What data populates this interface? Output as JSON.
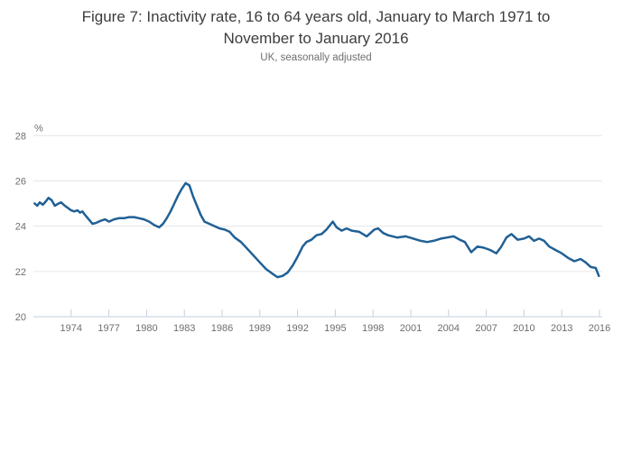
{
  "header": {
    "title": "Figure 7: Inactivity rate, 16 to 64 years old, January to March 1971 to November to January 2016",
    "subtitle": "UK, seasonally adjusted"
  },
  "colors": {
    "line": "#206095",
    "grid": "#e6e6e6",
    "axis": "#c3d0de",
    "tick_text": "#6e6e6e",
    "title_text": "#3d3d3d",
    "subtitle_text": "#6f6f6f"
  },
  "chart_data": {
    "type": "line",
    "title": "Figure 7: Inactivity rate, 16 to 64 years old, January to March 1971 to November to January 2016",
    "subtitle": "UK, seasonally adjusted",
    "xlabel": "",
    "ylabel": "%",
    "xlim": [
      1971,
      2016
    ],
    "ylim": [
      20,
      28
    ],
    "y_ticks": [
      20,
      22,
      24,
      26,
      28
    ],
    "x_ticks": [
      1974,
      1977,
      1980,
      1983,
      1986,
      1989,
      1992,
      1995,
      1998,
      2001,
      2004,
      2007,
      2010,
      2013,
      2016
    ],
    "grid": "horizontal-only",
    "legend": "none",
    "series": [
      {
        "name": "Inactivity rate, 16 to 64 years old",
        "color": "#206095",
        "points": [
          [
            1971.1,
            25.0
          ],
          [
            1971.3,
            24.9
          ],
          [
            1971.5,
            25.05
          ],
          [
            1971.75,
            24.95
          ],
          [
            1972.0,
            25.1
          ],
          [
            1972.2,
            25.25
          ],
          [
            1972.45,
            25.15
          ],
          [
            1972.7,
            24.9
          ],
          [
            1973.0,
            25.0
          ],
          [
            1973.2,
            25.05
          ],
          [
            1973.5,
            24.9
          ],
          [
            1973.75,
            24.8
          ],
          [
            1974.0,
            24.7
          ],
          [
            1974.25,
            24.65
          ],
          [
            1974.5,
            24.7
          ],
          [
            1974.7,
            24.6
          ],
          [
            1974.9,
            24.65
          ],
          [
            1975.1,
            24.5
          ],
          [
            1975.4,
            24.3
          ],
          [
            1975.7,
            24.1
          ],
          [
            1976.0,
            24.15
          ],
          [
            1976.4,
            24.25
          ],
          [
            1976.7,
            24.3
          ],
          [
            1977.0,
            24.2
          ],
          [
            1977.4,
            24.3
          ],
          [
            1977.8,
            24.35
          ],
          [
            1978.2,
            24.35
          ],
          [
            1978.6,
            24.4
          ],
          [
            1979.0,
            24.4
          ],
          [
            1979.4,
            24.35
          ],
          [
            1979.8,
            24.3
          ],
          [
            1980.2,
            24.2
          ],
          [
            1980.6,
            24.05
          ],
          [
            1981.0,
            23.95
          ],
          [
            1981.3,
            24.1
          ],
          [
            1981.6,
            24.35
          ],
          [
            1981.9,
            24.65
          ],
          [
            1982.2,
            25.0
          ],
          [
            1982.5,
            25.35
          ],
          [
            1982.8,
            25.65
          ],
          [
            1983.1,
            25.9
          ],
          [
            1983.4,
            25.8
          ],
          [
            1983.7,
            25.3
          ],
          [
            1984.0,
            24.9
          ],
          [
            1984.3,
            24.5
          ],
          [
            1984.6,
            24.2
          ],
          [
            1985.0,
            24.1
          ],
          [
            1985.4,
            24.0
          ],
          [
            1985.8,
            23.9
          ],
          [
            1986.2,
            23.85
          ],
          [
            1986.6,
            23.75
          ],
          [
            1987.0,
            23.5
          ],
          [
            1987.5,
            23.3
          ],
          [
            1988.0,
            23.0
          ],
          [
            1988.5,
            22.7
          ],
          [
            1989.0,
            22.4
          ],
          [
            1989.5,
            22.1
          ],
          [
            1990.0,
            21.9
          ],
          [
            1990.4,
            21.75
          ],
          [
            1990.8,
            21.8
          ],
          [
            1991.2,
            21.95
          ],
          [
            1991.6,
            22.25
          ],
          [
            1992.0,
            22.65
          ],
          [
            1992.4,
            23.1
          ],
          [
            1992.7,
            23.3
          ],
          [
            1993.1,
            23.4
          ],
          [
            1993.5,
            23.6
          ],
          [
            1993.9,
            23.65
          ],
          [
            1994.3,
            23.85
          ],
          [
            1994.8,
            24.2
          ],
          [
            1995.1,
            23.95
          ],
          [
            1995.5,
            23.8
          ],
          [
            1995.9,
            23.9
          ],
          [
            1996.3,
            23.8
          ],
          [
            1996.9,
            23.75
          ],
          [
            1997.5,
            23.55
          ],
          [
            1998.1,
            23.85
          ],
          [
            1998.4,
            23.9
          ],
          [
            1998.8,
            23.7
          ],
          [
            1999.2,
            23.6
          ],
          [
            1999.9,
            23.5
          ],
          [
            2000.6,
            23.55
          ],
          [
            2001.2,
            23.45
          ],
          [
            2001.8,
            23.35
          ],
          [
            2002.3,
            23.3
          ],
          [
            2002.8,
            23.35
          ],
          [
            2003.4,
            23.45
          ],
          [
            2003.9,
            23.5
          ],
          [
            2004.4,
            23.55
          ],
          [
            2004.9,
            23.4
          ],
          [
            2005.3,
            23.3
          ],
          [
            2005.8,
            22.85
          ],
          [
            2006.3,
            23.1
          ],
          [
            2006.8,
            23.05
          ],
          [
            2007.3,
            22.95
          ],
          [
            2007.8,
            22.8
          ],
          [
            2008.2,
            23.1
          ],
          [
            2008.6,
            23.5
          ],
          [
            2009.0,
            23.65
          ],
          [
            2009.5,
            23.4
          ],
          [
            2010.0,
            23.45
          ],
          [
            2010.4,
            23.55
          ],
          [
            2010.8,
            23.35
          ],
          [
            2011.2,
            23.45
          ],
          [
            2011.6,
            23.35
          ],
          [
            2012.0,
            23.1
          ],
          [
            2012.5,
            22.95
          ],
          [
            2013.0,
            22.8
          ],
          [
            2013.5,
            22.6
          ],
          [
            2014.0,
            22.45
          ],
          [
            2014.5,
            22.55
          ],
          [
            2014.9,
            22.4
          ],
          [
            2015.3,
            22.2
          ],
          [
            2015.7,
            22.15
          ],
          [
            2015.95,
            21.8
          ]
        ]
      }
    ]
  }
}
